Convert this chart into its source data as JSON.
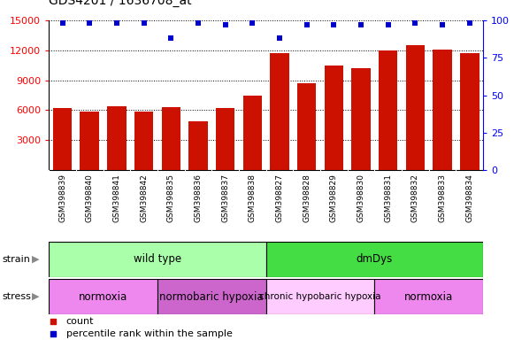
{
  "title": "GDS4201 / 1636708_at",
  "samples": [
    "GSM398839",
    "GSM398840",
    "GSM398841",
    "GSM398842",
    "GSM398835",
    "GSM398836",
    "GSM398837",
    "GSM398838",
    "GSM398827",
    "GSM398828",
    "GSM398829",
    "GSM398830",
    "GSM398831",
    "GSM398832",
    "GSM398833",
    "GSM398834"
  ],
  "counts": [
    6200,
    5900,
    6400,
    5900,
    6300,
    4900,
    6200,
    7500,
    11700,
    8700,
    10500,
    10200,
    12000,
    12500,
    12100,
    11700
  ],
  "percentile_ranks": [
    98,
    98,
    98,
    98,
    88,
    98,
    97,
    98,
    88,
    97,
    97,
    97,
    97,
    98,
    97,
    98
  ],
  "bar_color": "#cc1100",
  "dot_color": "#0000cc",
  "ylim_left": [
    0,
    15000
  ],
  "ylim_right": [
    0,
    100
  ],
  "yticks_left": [
    3000,
    6000,
    9000,
    12000,
    15000
  ],
  "yticks_right": [
    0,
    25,
    50,
    75,
    100
  ],
  "strain_groups": [
    {
      "label": "wild type",
      "start": 0,
      "end": 8,
      "color": "#aaffaa"
    },
    {
      "label": "dmDys",
      "start": 8,
      "end": 16,
      "color": "#44dd44"
    }
  ],
  "stress_groups": [
    {
      "label": "normoxia",
      "start": 0,
      "end": 4,
      "color": "#ee88ee"
    },
    {
      "label": "normobaric hypoxia",
      "start": 4,
      "end": 8,
      "color": "#cc66cc"
    },
    {
      "label": "chronic hypobaric hypoxia",
      "start": 8,
      "end": 12,
      "color": "#ffccff"
    },
    {
      "label": "normoxia",
      "start": 12,
      "end": 16,
      "color": "#ee88ee"
    }
  ],
  "legend_count_label": "count",
  "legend_pct_label": "percentile rank within the sample",
  "xticklabel_bg": "#cccccc",
  "grid_color": "#000000"
}
